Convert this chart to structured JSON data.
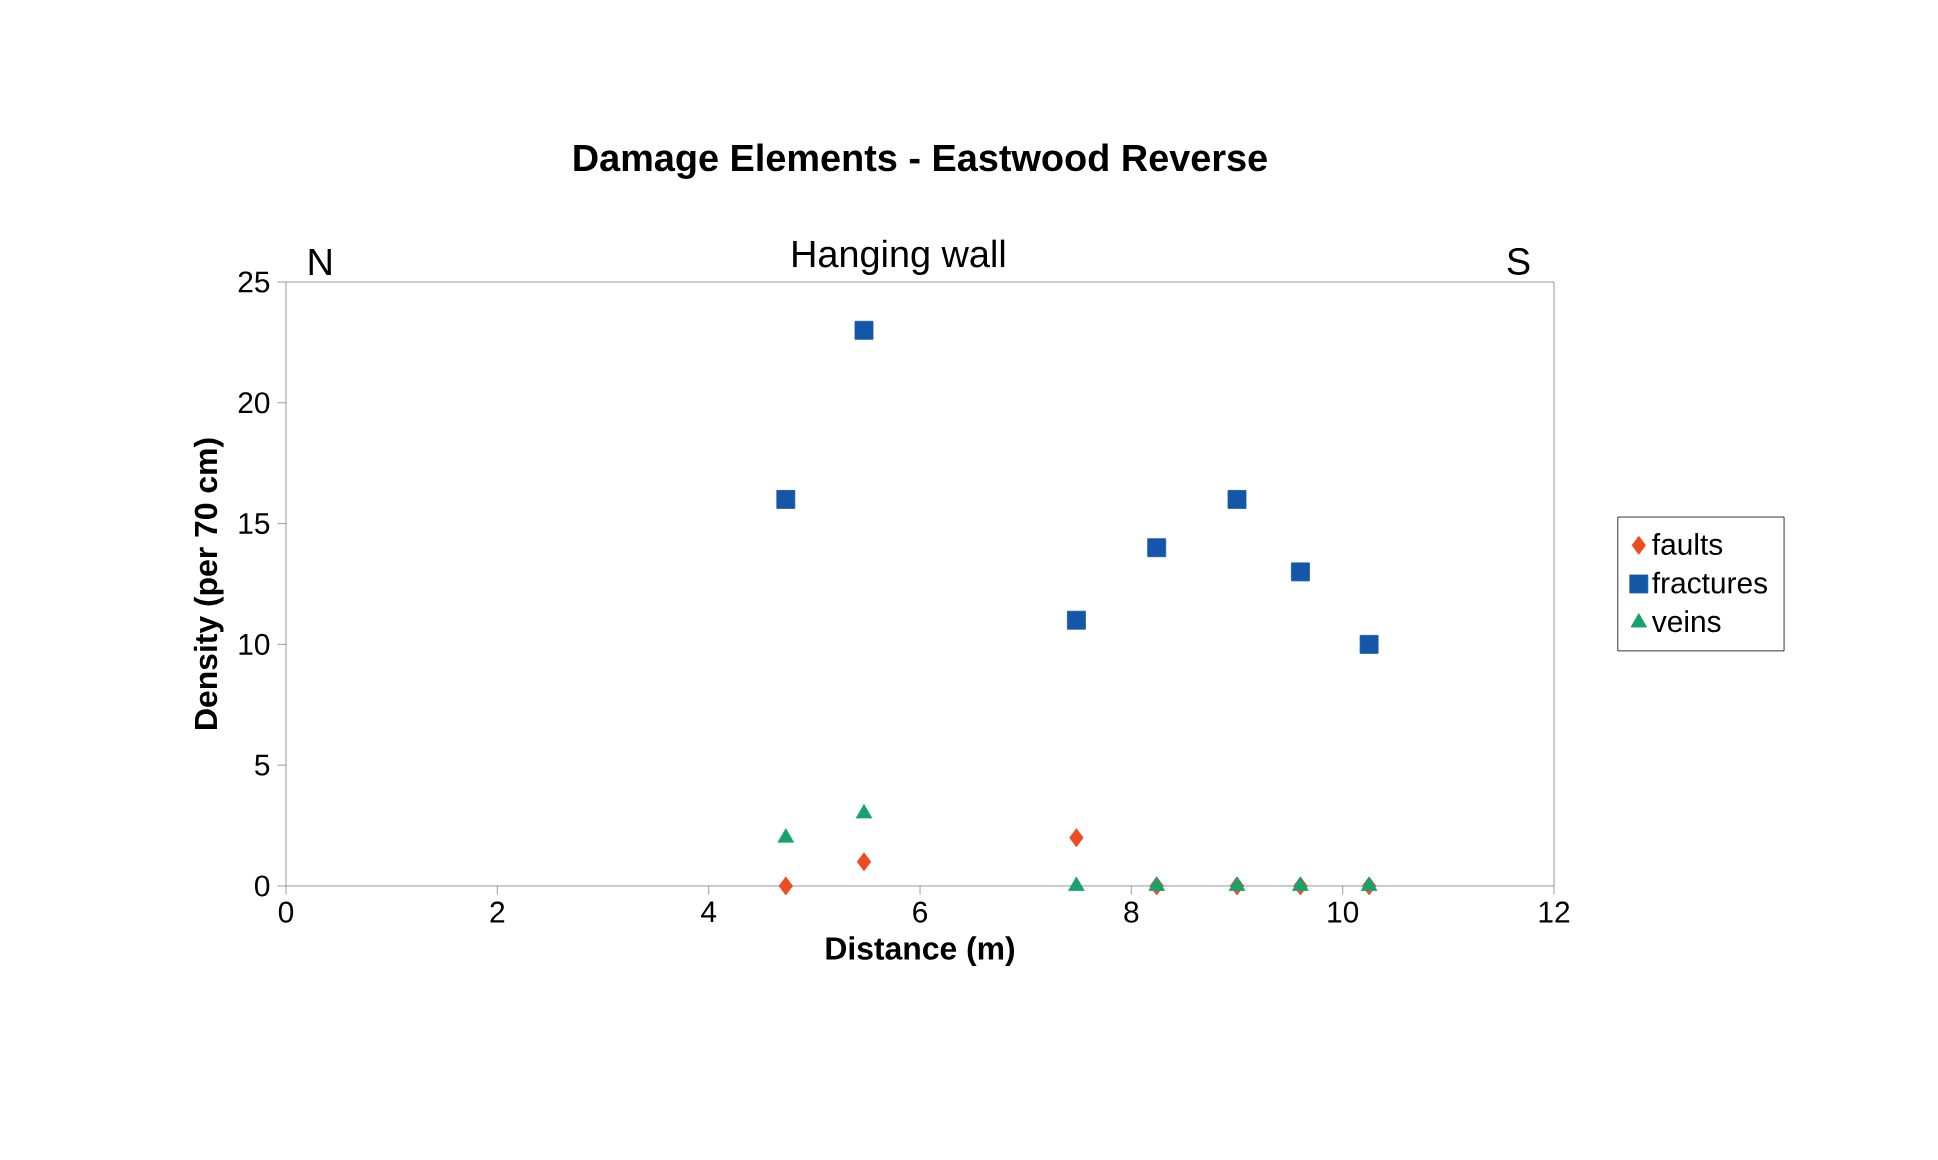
{
  "chart_data": {
    "type": "scatter",
    "title": "Damage Elements - Eastwood Reverse",
    "xlabel": "Distance (m)",
    "ylabel": "Density (per 70 cm)",
    "annotations": [
      "N",
      "Hanging wall",
      "S"
    ],
    "xlim": [
      0,
      12
    ],
    "xticks": [
      0,
      2,
      4,
      6,
      8,
      10,
      12
    ],
    "ylim": [
      0,
      25
    ],
    "yticks": [
      0,
      5,
      10,
      15,
      20,
      25
    ],
    "grid": false,
    "legend": "right",
    "series": [
      {
        "name": "faults",
        "color": "#ee4b22",
        "marker": "diamond",
        "x": [
          4.73,
          5.47,
          7.48,
          8.24,
          9.0,
          9.6,
          10.25
        ],
        "values": [
          0,
          1,
          2,
          0,
          0,
          0,
          0
        ]
      },
      {
        "name": "fractures",
        "color": "#1456a8",
        "marker": "square",
        "x": [
          4.73,
          5.47,
          7.48,
          8.24,
          9.0,
          9.6,
          10.25
        ],
        "values": [
          16,
          23,
          11,
          14,
          16,
          13,
          10
        ]
      },
      {
        "name": "veins",
        "color": "#17a36b",
        "marker": "triangle",
        "x": [
          4.73,
          5.47,
          7.48,
          8.24,
          9.0,
          9.6,
          10.25
        ],
        "values": [
          2,
          3,
          0,
          0,
          0,
          0,
          0
        ]
      }
    ]
  }
}
